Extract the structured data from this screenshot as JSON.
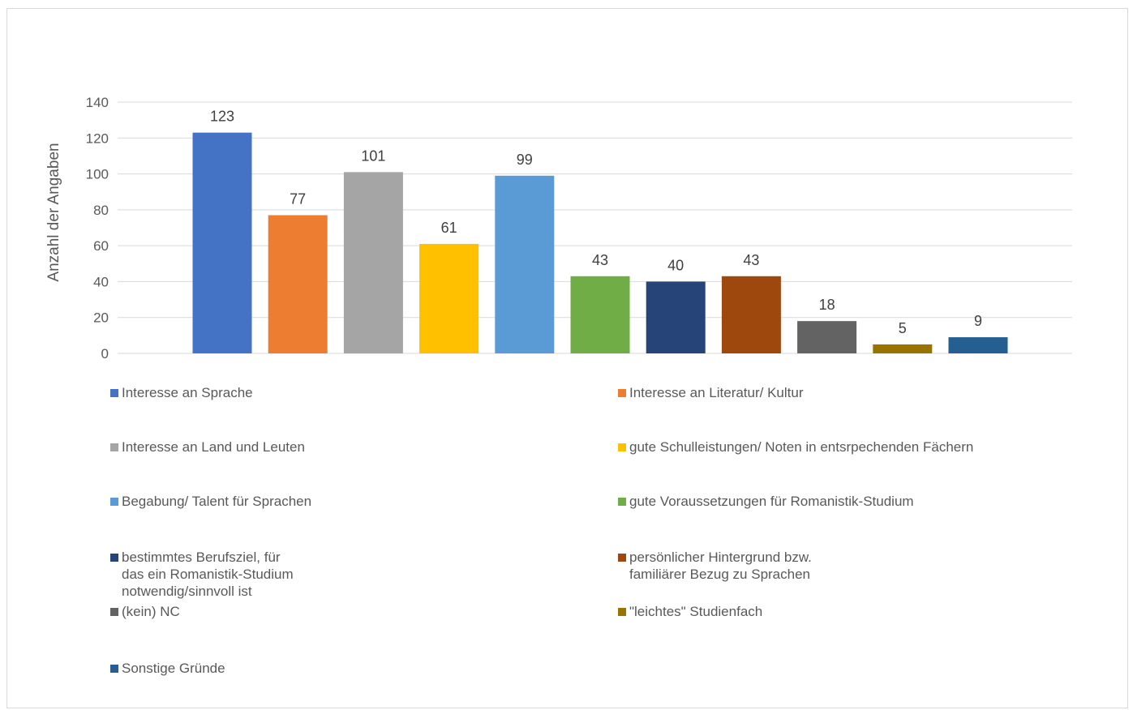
{
  "chart_data": {
    "type": "bar",
    "ylabel": "Anzahl der Angaben",
    "ylim": [
      0,
      140
    ],
    "yticks": [
      0,
      20,
      40,
      60,
      80,
      100,
      120,
      140
    ],
    "grid": true,
    "legend_position": "bottom",
    "series": [
      {
        "name": "Interesse an Sprache",
        "value": 123,
        "color": "#4472C4"
      },
      {
        "name": "Interesse an Literatur/ Kultur",
        "value": 77,
        "color": "#ED7D31"
      },
      {
        "name": "Interesse an Land und Leuten",
        "value": 101,
        "color": "#A5A5A5"
      },
      {
        "name": "gute Schulleistungen/ Noten in entsrpechenden Fächern",
        "value": 61,
        "color": "#FFC000"
      },
      {
        "name": "Begabung/ Talent für Sprachen",
        "value": 99,
        "color": "#5B9BD5"
      },
      {
        "name": "gute Voraussetzungen für Romanistik-Studium",
        "value": 43,
        "color": "#70AD47"
      },
      {
        "name": "bestimmtes Berufsziel, für\ndas ein Romanistik-Studium\nnotwendig/sinnvoll ist",
        "value": 40,
        "color": "#264478"
      },
      {
        "name": "persönlicher Hintergrund bzw.\nfamiliärer Bezug zu  Sprachen",
        "value": 43,
        "color": "#9E480E"
      },
      {
        "name": "(kein) NC",
        "value": 18,
        "color": "#636363"
      },
      {
        "name": "\"leichtes\" Studienfach",
        "value": 5,
        "color": "#997300"
      },
      {
        "name": "Sonstige Gründe",
        "value": 9,
        "color": "#255E91"
      }
    ]
  }
}
